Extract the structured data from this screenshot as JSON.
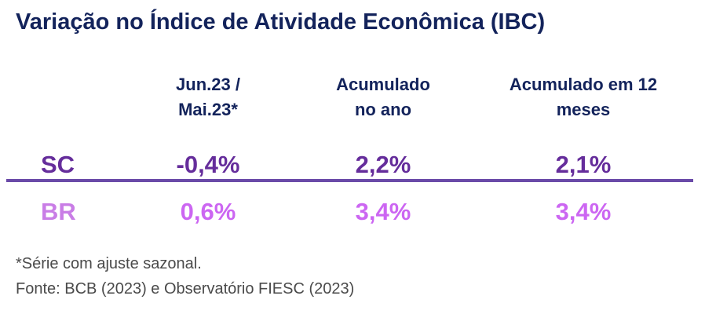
{
  "chart_data": {
    "type": "table",
    "title": "Variação no Índice de Atividade Econômica (IBC)",
    "columns": [
      "Jun.23 / Mai.23*",
      "Acumulado no ano",
      "Acumulado em 12 meses"
    ],
    "column_lines": [
      [
        "Jun.23 /",
        "Mai.23*"
      ],
      [
        "Acumulado",
        "no ano"
      ],
      [
        "Acumulado em 12",
        "meses"
      ]
    ],
    "rows": [
      {
        "label": "SC",
        "values": [
          "-0,4%",
          "2,2%",
          "2,1%"
        ],
        "numeric": [
          -0.4,
          2.2,
          2.1
        ]
      },
      {
        "label": "BR",
        "values": [
          "0,6%",
          "3,4%",
          "3,4%"
        ],
        "numeric": [
          0.6,
          3.4,
          3.4
        ]
      }
    ],
    "footnote": "*Série com ajuste sazonal.",
    "source": "Fonte: BCB (2023) e Observatório FIESC (2023)"
  },
  "colors": {
    "title": "#13235b",
    "sc": "#652d9b",
    "br": "#cc66f2",
    "divider": "#6a4aa8"
  }
}
